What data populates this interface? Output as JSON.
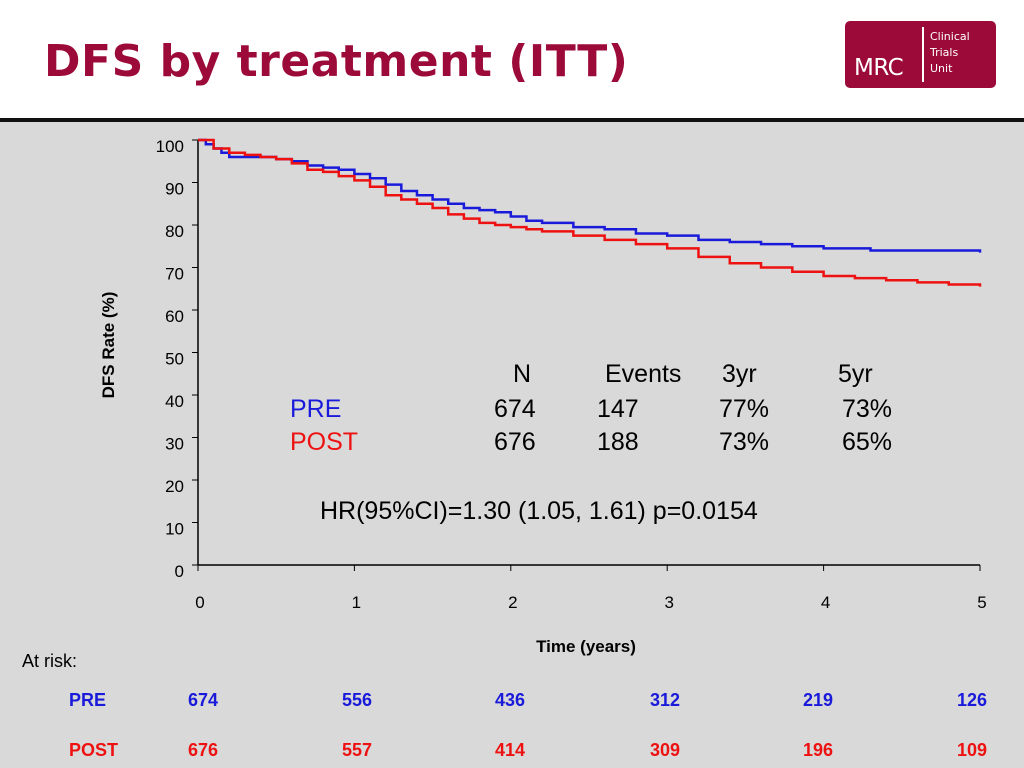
{
  "slide": {
    "title": "DFS by treatment (ITT)",
    "logo": {
      "main": "MRC",
      "lines": [
        "Clinical",
        "Trials",
        "Unit"
      ]
    }
  },
  "colors": {
    "title": "#9c0a3a",
    "pre": "#1a1adb",
    "post": "#ee1111",
    "background": "#d9d9d9"
  },
  "stats": {
    "headers": [
      "N",
      "Events",
      "3yr",
      "5yr"
    ],
    "rows": [
      {
        "label": "PRE",
        "n": "674",
        "events": "147",
        "yr3": "77%",
        "yr5": "73%"
      },
      {
        "label": "POST",
        "n": "676",
        "events": "188",
        "yr3": "73%",
        "yr5": "65%"
      }
    ],
    "hr": "HR(95%CI)=1.30 (1.05, 1.61) p=0.0154"
  },
  "at_risk": {
    "label": "At risk:",
    "rows": [
      {
        "label": "PRE",
        "values": [
          "674",
          "556",
          "436",
          "312",
          "219",
          "126"
        ]
      },
      {
        "label": "POST",
        "values": [
          "676",
          "557",
          "414",
          "309",
          "196",
          "109"
        ]
      }
    ]
  },
  "chart_data": {
    "type": "line",
    "title": "",
    "xlabel": "Time (years)",
    "ylabel": "DFS Rate (%)",
    "xlim": [
      0,
      5
    ],
    "ylim": [
      0,
      100
    ],
    "xticks": [
      "0",
      "1",
      "2",
      "3",
      "4",
      "5"
    ],
    "yticks": [
      "0",
      "10",
      "20",
      "30",
      "40",
      "50",
      "60",
      "70",
      "80",
      "90",
      "100"
    ],
    "grid": false,
    "series": [
      {
        "name": "PRE",
        "color": "#1a1adb",
        "x": [
          0,
          0.05,
          0.1,
          0.15,
          0.2,
          0.3,
          0.4,
          0.5,
          0.6,
          0.7,
          0.8,
          0.9,
          1.0,
          1.1,
          1.2,
          1.3,
          1.4,
          1.5,
          1.6,
          1.7,
          1.8,
          1.9,
          2.0,
          2.1,
          2.2,
          2.4,
          2.6,
          2.8,
          3.0,
          3.2,
          3.4,
          3.6,
          3.8,
          4.0,
          4.3,
          4.6,
          5.0
        ],
        "y": [
          100,
          99,
          98,
          97,
          96,
          96,
          96,
          95.5,
          95,
          94,
          93.5,
          93,
          92,
          91,
          89.5,
          88,
          87,
          86,
          85,
          84,
          83.5,
          83,
          82,
          81,
          80.5,
          79.5,
          79,
          78,
          77.5,
          76.5,
          76,
          75.5,
          75,
          74.5,
          74,
          74,
          73.5
        ]
      },
      {
        "name": "POST",
        "color": "#ee1111",
        "x": [
          0,
          0.1,
          0.2,
          0.3,
          0.4,
          0.5,
          0.6,
          0.7,
          0.8,
          0.9,
          1.0,
          1.1,
          1.2,
          1.3,
          1.4,
          1.5,
          1.6,
          1.7,
          1.8,
          1.9,
          2.0,
          2.1,
          2.2,
          2.4,
          2.6,
          2.8,
          3.0,
          3.2,
          3.4,
          3.6,
          3.8,
          4.0,
          4.2,
          4.4,
          4.6,
          4.8,
          5.0
        ],
        "y": [
          100,
          98,
          97,
          96.5,
          96,
          95.5,
          94.5,
          93,
          92.5,
          91.5,
          90.5,
          89,
          87,
          86,
          85,
          84,
          82.5,
          81.5,
          80.5,
          80,
          79.5,
          79,
          78.5,
          77.5,
          76.5,
          75.5,
          74.5,
          72.5,
          71,
          70,
          69,
          68,
          67.5,
          67,
          66.5,
          66,
          65.5
        ]
      }
    ]
  }
}
